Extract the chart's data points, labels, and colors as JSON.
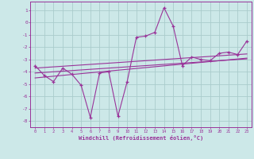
{
  "x": [
    0,
    1,
    2,
    3,
    4,
    5,
    6,
    7,
    8,
    9,
    10,
    11,
    12,
    13,
    14,
    15,
    16,
    17,
    18,
    19,
    20,
    21,
    22,
    23
  ],
  "y_main": [
    -3.5,
    -4.3,
    -4.8,
    -3.7,
    -4.2,
    -5.1,
    -7.7,
    -4.1,
    -4.0,
    -7.6,
    -4.8,
    -1.2,
    -1.1,
    -0.8,
    1.2,
    -0.3,
    -3.5,
    -2.8,
    -3.0,
    -3.1,
    -2.5,
    -2.4,
    -2.6,
    -1.5
  ],
  "y_line1": [
    -3.7,
    -3.65,
    -3.6,
    -3.55,
    -3.5,
    -3.45,
    -3.4,
    -3.35,
    -3.3,
    -3.25,
    -3.2,
    -3.15,
    -3.1,
    -3.05,
    -3.0,
    -2.95,
    -2.9,
    -2.85,
    -2.8,
    -2.75,
    -2.7,
    -2.65,
    -2.6,
    -2.55
  ],
  "y_line2": [
    -4.1,
    -4.05,
    -4.0,
    -3.95,
    -3.9,
    -3.85,
    -3.8,
    -3.75,
    -3.7,
    -3.65,
    -3.6,
    -3.55,
    -3.5,
    -3.45,
    -3.4,
    -3.35,
    -3.3,
    -3.25,
    -3.2,
    -3.15,
    -3.1,
    -3.05,
    -3.0,
    -2.95
  ],
  "y_line3": [
    -4.5,
    -4.43,
    -4.36,
    -4.29,
    -4.22,
    -4.15,
    -4.08,
    -4.01,
    -3.94,
    -3.87,
    -3.8,
    -3.73,
    -3.66,
    -3.59,
    -3.52,
    -3.45,
    -3.38,
    -3.31,
    -3.24,
    -3.17,
    -3.1,
    -3.03,
    -2.96,
    -2.89
  ],
  "line_color": "#993399",
  "bg_color": "#cce8e8",
  "grid_color": "#aacccc",
  "xlabel": "Windchill (Refroidissement éolien,°C)",
  "ylim": [
    -8.5,
    1.7
  ],
  "xlim": [
    -0.5,
    23.5
  ],
  "yticks": [
    1,
    0,
    -1,
    -2,
    -3,
    -4,
    -5,
    -6,
    -7,
    -8
  ],
  "xticks": [
    0,
    1,
    2,
    3,
    4,
    5,
    6,
    7,
    8,
    9,
    10,
    11,
    12,
    13,
    14,
    15,
    16,
    17,
    18,
    19,
    20,
    21,
    22,
    23
  ]
}
